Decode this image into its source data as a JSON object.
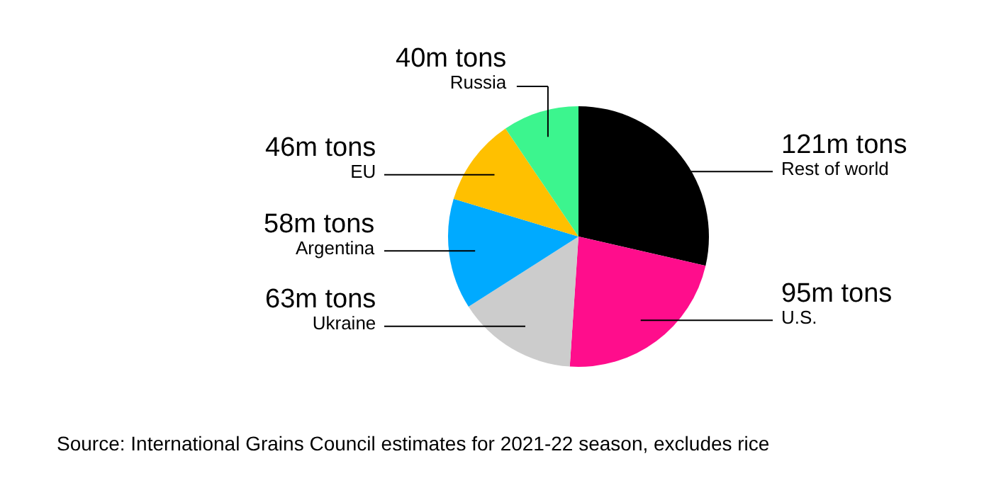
{
  "chart_data": {
    "type": "pie",
    "categories": [
      "Rest of world",
      "U.S.",
      "Ukraine",
      "Argentina",
      "EU",
      "Russia"
    ],
    "values": [
      121,
      95,
      63,
      58,
      46,
      40
    ],
    "value_labels": [
      "121m tons",
      "95m tons",
      "63m tons",
      "58m tons",
      "46m tons",
      "40m tons"
    ],
    "colors": [
      "#000000",
      "#ff0d8c",
      "#cccccc",
      "#00aaff",
      "#ffc000",
      "#3cf58e"
    ],
    "annotations": [
      "Source: International Grains Council estimates for 2021-22 season, excludes rice"
    ],
    "legend": false
  }
}
